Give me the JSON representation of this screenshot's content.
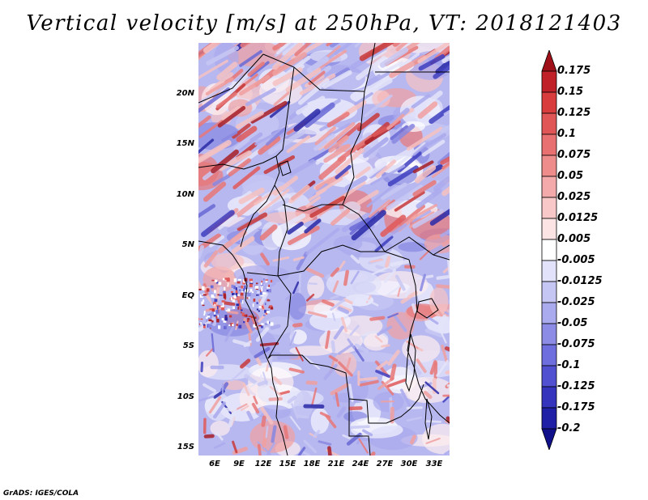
{
  "title": "Vertical velocity [m/s] at 250hPa, VT: 2018121403",
  "credit": "GrADS: IGES/COLA",
  "map": {
    "lon_range": [
      3,
      34
    ],
    "lat_range": [
      -16,
      24
    ],
    "lat_ticks": [
      "20N",
      "15N",
      "10N",
      "5N",
      "EQ",
      "5S",
      "10S",
      "15S"
    ],
    "lat_tick_values": [
      20,
      15,
      10,
      5,
      0,
      -5,
      -10,
      -15
    ],
    "lon_ticks": [
      "6E",
      "9E",
      "12E",
      "15E",
      "18E",
      "21E",
      "24E",
      "27E",
      "30E",
      "33E"
    ],
    "lon_tick_values": [
      6,
      9,
      12,
      15,
      18,
      21,
      24,
      27,
      30,
      33
    ],
    "field": "vertical velocity",
    "pattern": "diagonal SW-NE banded red/blue streaks in north, noisy mixed pattern in south and along equatorial coast"
  },
  "colorbar": {
    "labels": [
      "0.175",
      "0.15",
      "0.125",
      "0.1",
      "0.075",
      "0.05",
      "0.025",
      "0.0125",
      "0.005",
      "-0.005",
      "-0.0125",
      "-0.025",
      "-0.05",
      "-0.075",
      "-0.1",
      "-0.125",
      "-0.175",
      "-0.2"
    ],
    "colors": [
      "#a01018",
      "#c02028",
      "#d83c3c",
      "#e05656",
      "#e87070",
      "#ee8c8c",
      "#f4aaaa",
      "#f8c8c8",
      "#fde4e4",
      "#ffffff",
      "#e2e2fa",
      "#c6c6f4",
      "#aaaaee",
      "#8c8ce6",
      "#6e6ede",
      "#5050d0",
      "#3434bc",
      "#2020a6",
      "#10108a"
    ]
  }
}
